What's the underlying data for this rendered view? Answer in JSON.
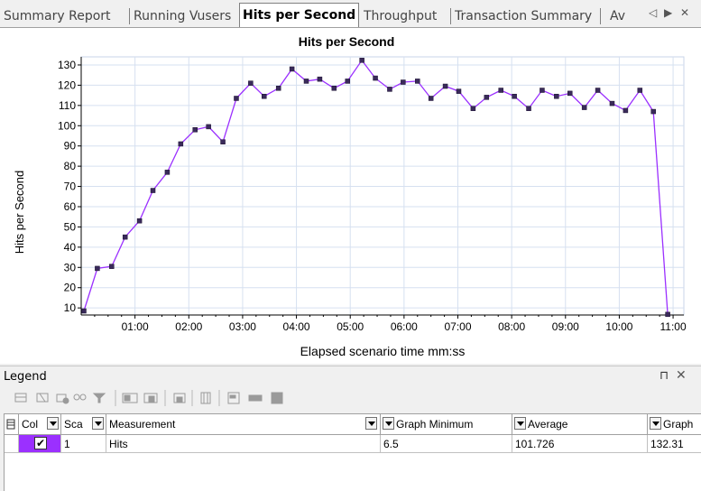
{
  "tabs": [
    {
      "label": "Summary Report",
      "active": false
    },
    {
      "label": "Running Vusers",
      "active": false
    },
    {
      "label": "Hits per Second",
      "active": true
    },
    {
      "label": "Throughput",
      "active": false
    },
    {
      "label": "Transaction Summary",
      "active": false
    },
    {
      "label": "Av",
      "active": false
    }
  ],
  "tab_controls": {
    "prev": "◁",
    "next": "▶",
    "close": "✕"
  },
  "chart_data": {
    "type": "line",
    "title": "Hits per Second",
    "xlabel": "Elapsed scenario time mm:ss",
    "ylabel": "Hits per Second",
    "x_ticks": [
      "01:00",
      "02:00",
      "03:00",
      "04:00",
      "05:00",
      "06:00",
      "07:00",
      "08:00",
      "09:00",
      "10:00",
      "11:00"
    ],
    "y_ticks": [
      10,
      20,
      30,
      40,
      50,
      60,
      70,
      80,
      90,
      100,
      110,
      120,
      130
    ],
    "xlim_seconds": [
      0,
      672
    ],
    "ylim": [
      6.5,
      134
    ],
    "grid": true,
    "series": [
      {
        "color": "#9b30ff",
        "points": [
          [
            3,
            8.5
          ],
          [
            18,
            29.5
          ],
          [
            34,
            30.5
          ],
          [
            49,
            45
          ],
          [
            65,
            53
          ],
          [
            80,
            68
          ],
          [
            96,
            77
          ],
          [
            111,
            91
          ],
          [
            127,
            98
          ],
          [
            142,
            99.5
          ],
          [
            158,
            92
          ],
          [
            173,
            113.5
          ],
          [
            189,
            121
          ],
          [
            204,
            114.5
          ],
          [
            220,
            118.5
          ],
          [
            235,
            128
          ],
          [
            251,
            122
          ],
          [
            266,
            123
          ],
          [
            282,
            118.5
          ],
          [
            297,
            122
          ],
          [
            313,
            132.3
          ],
          [
            328,
            123.5
          ],
          [
            344,
            118
          ],
          [
            359,
            121.5
          ],
          [
            375,
            122
          ],
          [
            390,
            113.5
          ],
          [
            406,
            119.5
          ],
          [
            421,
            117
          ],
          [
            437,
            108.5
          ],
          [
            452,
            114
          ],
          [
            468,
            117.5
          ],
          [
            483,
            114.5
          ],
          [
            499,
            108.5
          ],
          [
            514,
            117.5
          ],
          [
            530,
            114.5
          ],
          [
            545,
            116
          ],
          [
            561,
            109
          ],
          [
            576,
            117.5
          ],
          [
            592,
            111
          ],
          [
            607,
            107.5
          ],
          [
            623,
            117.5
          ],
          [
            638,
            107
          ],
          [
            654,
            6.8
          ]
        ]
      }
    ]
  },
  "legend": {
    "title": "Legend",
    "pin_icon": "⊓",
    "close_icon": "✕",
    "columns": [
      "Col",
      "Sca",
      "Measurement",
      "Graph Minimum",
      "Average",
      "Graph"
    ],
    "rows": [
      {
        "color": "#9b30ff",
        "checked": true,
        "scale": "1",
        "measurement": "Hits",
        "graph_minimum": "6.5",
        "average": "101.726",
        "graph_maximum": "132.31"
      }
    ]
  }
}
